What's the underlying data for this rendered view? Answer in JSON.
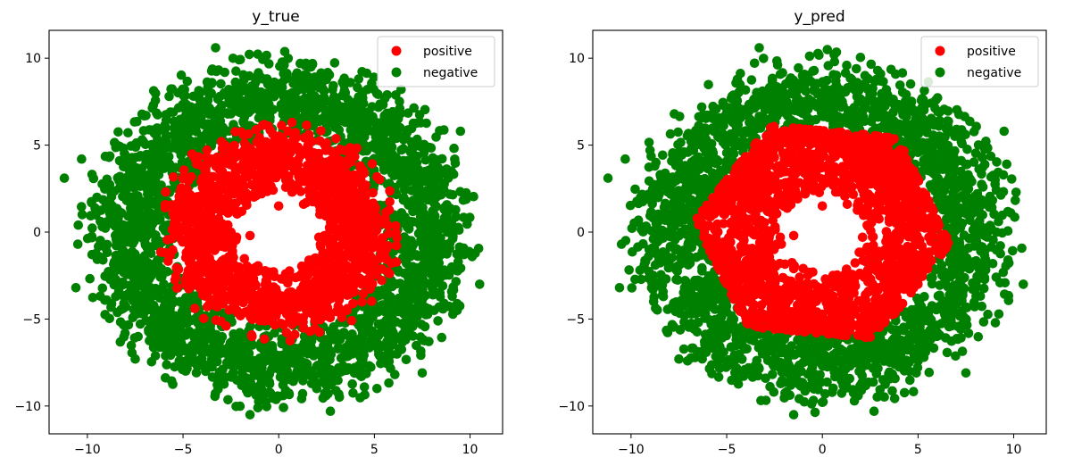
{
  "chart_data": [
    {
      "type": "scatter",
      "title": "y_true",
      "xlabel": "",
      "ylabel": "",
      "xlim": [
        -12.0,
        11.7
      ],
      "ylim": [
        -11.6,
        11.6
      ],
      "xticks": [
        -10,
        -5,
        0,
        5,
        10
      ],
      "yticks": [
        -10,
        -5,
        0,
        5,
        10
      ],
      "xtick_labels": [
        "−10",
        "−5",
        "0",
        "5",
        "10"
      ],
      "ytick_labels": [
        "−10",
        "−5",
        "0",
        "5",
        "10"
      ],
      "grid": false,
      "legend_position": "top-right",
      "series": [
        {
          "name": "positive",
          "color": "#ff0000",
          "distribution": {
            "shape": "ring",
            "center": [
              0,
              0
            ],
            "inner_radius": 2.2,
            "outer_radius": 6.4,
            "approx_points": 1500
          },
          "values": [
            [
              0,
              1.5
            ],
            [
              -2.5,
              1.3
            ],
            [
              -2.2,
              -0.3
            ],
            [
              -1.5,
              -0.2
            ],
            [
              -2.8,
              -0.4
            ],
            [
              -1.5,
              -2.1
            ],
            [
              0.7,
              2.3
            ],
            [
              1.3,
              1.6
            ],
            [
              -0.9,
              2.2
            ],
            [
              -0.5,
              -2.3
            ],
            [
              1.2,
              -2.4
            ],
            [
              2.1,
              -0.3
            ],
            [
              3.4,
              -2.2
            ],
            [
              2.5,
              -1.7
            ]
          ]
        },
        {
          "name": "negative",
          "color": "#008000",
          "distribution": {
            "shape": "ring",
            "center": [
              0,
              0
            ],
            "inner_radius": 5.2,
            "outer_radius": 10.5,
            "approx_points": 2500
          },
          "values": [
            [
              -11.2,
              3.1
            ],
            [
              -10.6,
              -3.2
            ],
            [
              -3.3,
              10.6
            ],
            [
              9.5,
              5.8
            ],
            [
              10.5,
              -3.0
            ],
            [
              -1.5,
              -10.5
            ],
            [
              2.7,
              -10.3
            ],
            [
              -7.5,
              -7.3
            ],
            [
              7.5,
              -8.1
            ],
            [
              -10.3,
              4.2
            ],
            [
              -9.5,
              2.0
            ],
            [
              -10.5,
              -0.7
            ]
          ]
        }
      ]
    },
    {
      "type": "scatter",
      "title": "y_pred",
      "xlabel": "",
      "ylabel": "",
      "xlim": [
        -12.0,
        11.7
      ],
      "ylim": [
        -11.6,
        11.6
      ],
      "xticks": [
        -10,
        -5,
        0,
        5,
        10
      ],
      "yticks": [
        -10,
        -5,
        0,
        5,
        10
      ],
      "xtick_labels": [
        "−10",
        "−5",
        "0",
        "5",
        "10"
      ],
      "ytick_labels": [
        "−10",
        "−5",
        "0",
        "5",
        "10"
      ],
      "grid": false,
      "legend_position": "top-right",
      "series": [
        {
          "name": "positive",
          "color": "#ff0000",
          "distribution": {
            "shape": "hexagonal-ring",
            "center": [
              0,
              0
            ],
            "inner_radius": 2.2,
            "outer_radius": 6.7,
            "approx_points": 1900
          },
          "values": [
            [
              0,
              1.5
            ],
            [
              -2.5,
              1.3
            ],
            [
              -2.2,
              -0.3
            ],
            [
              -1.5,
              -0.2
            ],
            [
              -2.8,
              -0.4
            ],
            [
              -1.5,
              -2.1
            ],
            [
              0.7,
              2.3
            ],
            [
              1.3,
              1.6
            ],
            [
              -0.9,
              2.2
            ],
            [
              -0.5,
              -2.3
            ],
            [
              1.2,
              -2.4
            ],
            [
              2.1,
              -0.3
            ]
          ]
        },
        {
          "name": "negative",
          "color": "#008000",
          "distribution": {
            "shape": "ring",
            "center": [
              0,
              0
            ],
            "inner_radius": 6.0,
            "outer_radius": 10.5,
            "approx_points": 2100
          },
          "values": [
            [
              -11.2,
              3.1
            ],
            [
              -10.6,
              -3.2
            ],
            [
              -3.3,
              10.6
            ],
            [
              9.5,
              5.8
            ],
            [
              10.5,
              -3.0
            ],
            [
              -1.5,
              -10.5
            ],
            [
              2.7,
              -10.3
            ],
            [
              -7.5,
              -7.3
            ],
            [
              7.5,
              -8.1
            ],
            [
              -10.3,
              4.2
            ],
            [
              -9.5,
              2.0
            ],
            [
              -10.5,
              -0.7
            ]
          ]
        }
      ]
    }
  ]
}
